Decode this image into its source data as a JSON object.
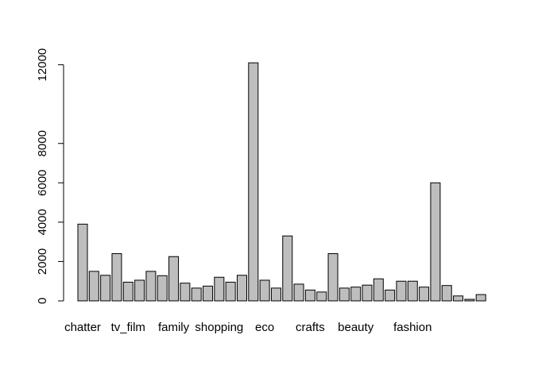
{
  "chart_data": {
    "type": "bar",
    "bar_color": "#bebebe",
    "border_color": "#000000",
    "categories": [
      "chatter",
      "",
      "",
      "",
      "tv_film",
      "",
      "",
      "",
      "family",
      "",
      "",
      "",
      "shopping",
      "",
      "",
      "",
      "eco",
      "",
      "",
      "",
      "crafts",
      "",
      "",
      "",
      "beauty",
      "",
      "",
      "",
      "",
      "fashion",
      "",
      "",
      "",
      "",
      "",
      ""
    ],
    "values": [
      3900,
      1500,
      1300,
      2400,
      950,
      1050,
      1500,
      1280,
      2250,
      900,
      650,
      750,
      1200,
      950,
      1300,
      12100,
      1050,
      650,
      3300,
      850,
      550,
      450,
      2400,
      650,
      700,
      800,
      1120,
      550,
      1000,
      1000,
      700,
      6000,
      780,
      250,
      80,
      320
    ],
    "category_labels": [
      "chatter",
      "tv_film",
      "family",
      "shopping",
      "eco",
      "crafts",
      "beauty",
      "fashion"
    ],
    "y_ticks": [
      0,
      2000,
      4000,
      6000,
      8000,
      12000
    ],
    "ylim": [
      0,
      12100
    ],
    "grid": false,
    "title": "",
    "xlabel": "",
    "ylabel": ""
  }
}
